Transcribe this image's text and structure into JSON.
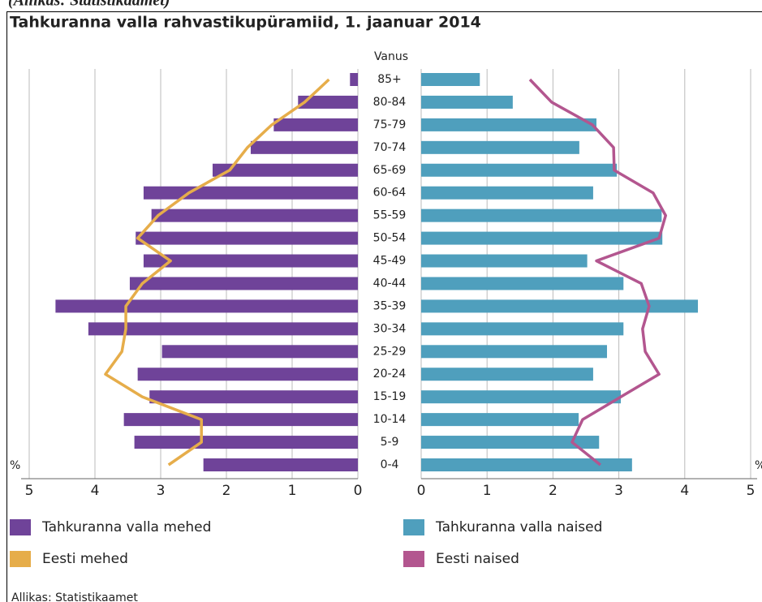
{
  "header_note": "(Allikas: Statistikaamet)",
  "chart_data": {
    "type": "pyramid",
    "title": "Tahkuranna valla rahvastikupüramiid, 1. jaanuar 2014",
    "ylabel": "Vanus",
    "xlabel": "%",
    "source": "Allikas: Statistikaamet",
    "categories": [
      "85+",
      "80-84",
      "75-79",
      "70-74",
      "65-69",
      "60-64",
      "55-59",
      "50-54",
      "45-49",
      "40-44",
      "35-39",
      "30-34",
      "25-29",
      "20-24",
      "15-19",
      "10-14",
      "5-9",
      "0-4"
    ],
    "xlim": [
      0,
      5
    ],
    "xticks": [
      0,
      1,
      2,
      3,
      4,
      5
    ],
    "grid": true,
    "series": [
      {
        "name": "Tahkuranna valla mehed",
        "kind": "bar",
        "side": "left",
        "color": "#6f4399",
        "values": [
          0.12,
          0.91,
          1.28,
          1.63,
          2.21,
          3.26,
          3.14,
          3.38,
          3.26,
          3.47,
          4.6,
          4.1,
          2.98,
          3.35,
          3.17,
          3.56,
          3.4,
          2.35
        ]
      },
      {
        "name": "Tahkuranna valla naised",
        "kind": "bar",
        "side": "right",
        "color": "#4f9fbd",
        "values": [
          0.89,
          1.39,
          2.66,
          2.4,
          2.97,
          2.61,
          3.65,
          3.66,
          2.52,
          3.07,
          4.2,
          3.07,
          2.82,
          2.61,
          3.03,
          2.39,
          2.7,
          3.2
        ]
      },
      {
        "name": "Eesti mehed",
        "kind": "line",
        "side": "left",
        "color": "#e6ad4a",
        "values": [
          0.44,
          0.81,
          1.31,
          1.68,
          1.95,
          2.57,
          3.04,
          3.35,
          2.85,
          3.28,
          3.53,
          3.53,
          3.59,
          3.84,
          3.28,
          2.38,
          2.38,
          2.88
        ]
      },
      {
        "name": "Eesti naised",
        "kind": "line",
        "side": "right",
        "color": "#b3568f",
        "values": [
          1.65,
          1.98,
          2.6,
          2.92,
          2.93,
          3.52,
          3.71,
          3.61,
          2.66,
          3.34,
          3.46,
          3.36,
          3.4,
          3.61,
          3.03,
          2.45,
          2.29,
          2.72
        ]
      }
    ]
  }
}
